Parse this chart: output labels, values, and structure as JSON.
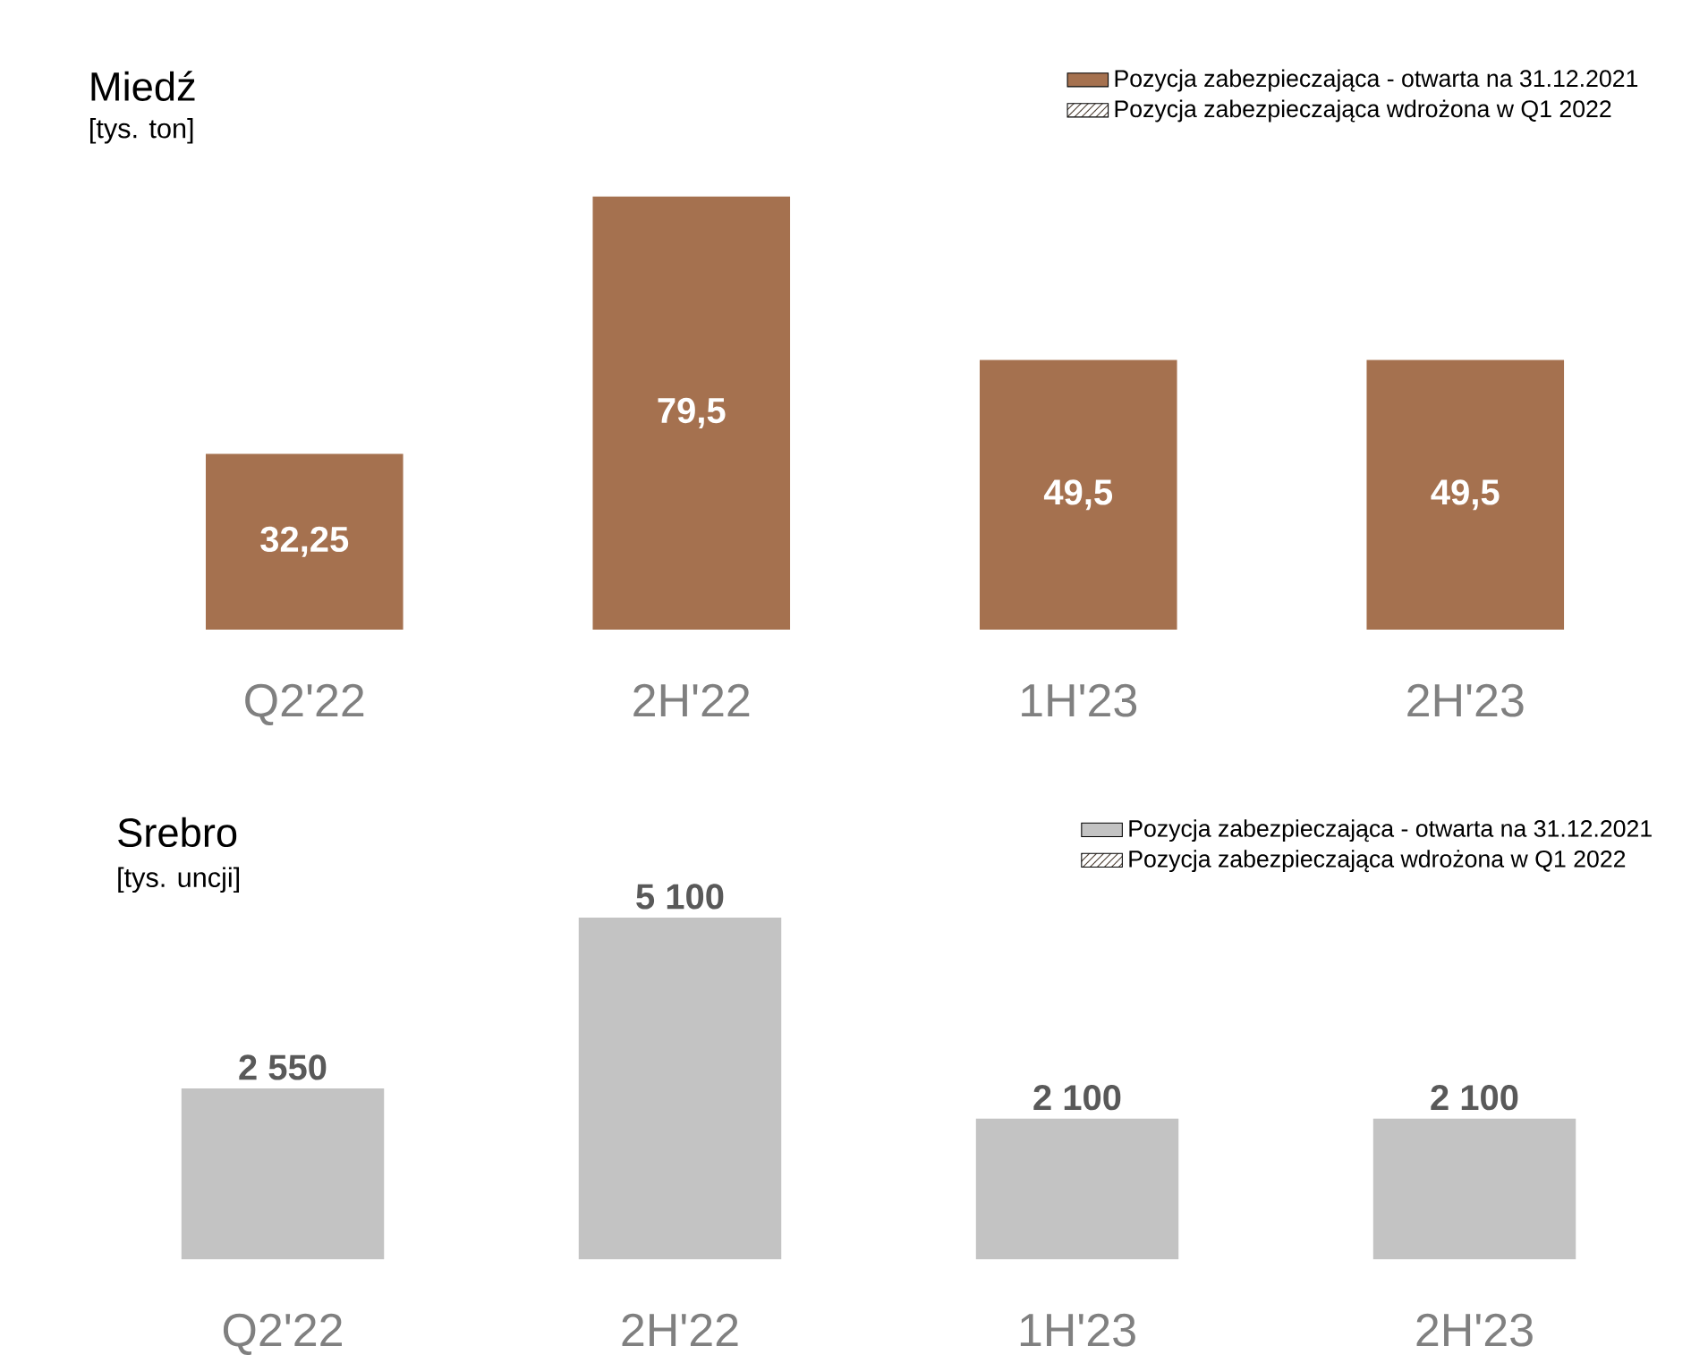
{
  "chart_data": [
    {
      "type": "bar",
      "title": "Miedź",
      "ylabel": "[tys. ton]",
      "categories": [
        "Q2'22",
        "2H'22",
        "1H'23",
        "2H'23"
      ],
      "legend": "top right",
      "series": [
        {
          "name": "Pozycja zabezpieczająca - otwarta na 31.12.2021",
          "color": "#a5714f",
          "values": [
            32.25,
            79.5,
            49.5,
            49.5
          ],
          "value_labels": [
            "32,25",
            "79,5",
            "49,5",
            "49,5"
          ]
        },
        {
          "name": "Pozycja zabezpieczająca wdrożona w Q1 2022",
          "color": "#4a3c30",
          "values": [
            null,
            null,
            null,
            null
          ]
        }
      ]
    },
    {
      "type": "bar",
      "title": "Srebro",
      "ylabel": "[tys. uncji]",
      "categories": [
        "Q2'22",
        "2H'22",
        "1H'23",
        "2H'23"
      ],
      "legend": "top right",
      "series": [
        {
          "name": "Pozycja zabezpieczająca - otwarta na 31.12.2021",
          "color": "#c3c3c3",
          "values": [
            2550,
            5100,
            2100,
            2100
          ],
          "value_labels": [
            "2 550",
            "5 100",
            "2 100",
            "2 100"
          ]
        },
        {
          "name": "Pozycja zabezpieczająca wdrożona w Q1 2022",
          "color": "#4a3c30",
          "values": [
            null,
            null,
            null,
            null
          ]
        }
      ]
    }
  ]
}
